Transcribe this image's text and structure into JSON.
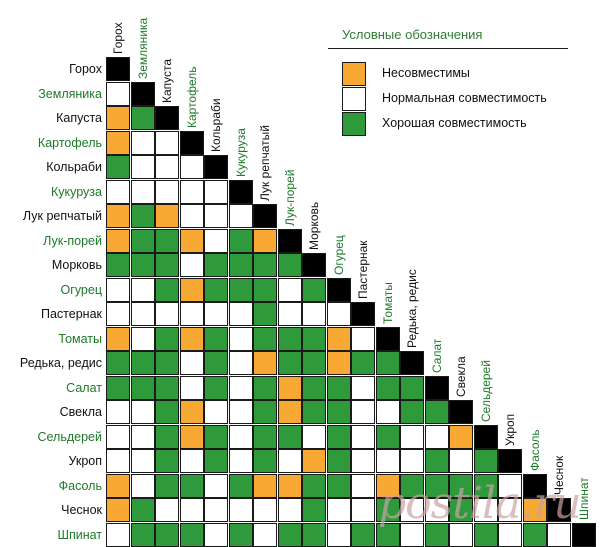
{
  "legend": {
    "title": "Условные обозначения",
    "items": [
      {
        "key": "bad",
        "label": "Несовместимы"
      },
      {
        "key": "neutral",
        "label": "Нормальная совместимость"
      },
      {
        "key": "good",
        "label": "Хорошая совместимость"
      }
    ]
  },
  "colors": {
    "bad": "#f7a933",
    "neutral": "#ffffff",
    "good": "#2e9a3c",
    "self": "#000000",
    "label_black": "#111111",
    "label_green": "#1f7a2a"
  },
  "vegetables": [
    {
      "name": "Горох",
      "label_color": "black"
    },
    {
      "name": "Земляника",
      "label_color": "green"
    },
    {
      "name": "Капуста",
      "label_color": "black"
    },
    {
      "name": "Картофель",
      "label_color": "green"
    },
    {
      "name": "Кольраби",
      "label_color": "black"
    },
    {
      "name": "Кукуруза",
      "label_color": "green"
    },
    {
      "name": "Лук репчатый",
      "label_color": "black"
    },
    {
      "name": "Лук-порей",
      "label_color": "green"
    },
    {
      "name": "Морковь",
      "label_color": "black"
    },
    {
      "name": "Огурец",
      "label_color": "green"
    },
    {
      "name": "Пастернак",
      "label_color": "black"
    },
    {
      "name": "Томаты",
      "label_color": "green"
    },
    {
      "name": "Редька, редис",
      "label_color": "black"
    },
    {
      "name": "Салат",
      "label_color": "green"
    },
    {
      "name": "Свекла",
      "label_color": "black"
    },
    {
      "name": "Сельдерей",
      "label_color": "green"
    },
    {
      "name": "Укроп",
      "label_color": "black"
    },
    {
      "name": "Фасоль",
      "label_color": "green"
    },
    {
      "name": "Чеснок",
      "label_color": "black"
    },
    {
      "name": "Шпинат",
      "label_color": "green"
    }
  ],
  "matrix_rows": [
    [
      "self"
    ],
    [
      "neutral",
      "self"
    ],
    [
      "bad",
      "good",
      "self"
    ],
    [
      "bad",
      "neutral",
      "neutral",
      "self"
    ],
    [
      "good",
      "neutral",
      "neutral",
      "neutral",
      "self"
    ],
    [
      "neutral",
      "neutral",
      "neutral",
      "neutral",
      "neutral",
      "self"
    ],
    [
      "bad",
      "good",
      "bad",
      "neutral",
      "neutral",
      "neutral",
      "self"
    ],
    [
      "bad",
      "good",
      "good",
      "bad",
      "neutral",
      "good",
      "bad",
      "self"
    ],
    [
      "good",
      "good",
      "good",
      "neutral",
      "good",
      "good",
      "good",
      "good",
      "self"
    ],
    [
      "neutral",
      "neutral",
      "good",
      "bad",
      "good",
      "good",
      "good",
      "neutral",
      "good",
      "self"
    ],
    [
      "neutral",
      "neutral",
      "neutral",
      "neutral",
      "neutral",
      "neutral",
      "good",
      "neutral",
      "neutral",
      "neutral",
      "self"
    ],
    [
      "bad",
      "neutral",
      "good",
      "bad",
      "good",
      "neutral",
      "good",
      "good",
      "good",
      "bad",
      "neutral",
      "self"
    ],
    [
      "good",
      "good",
      "good",
      "neutral",
      "good",
      "neutral",
      "bad",
      "good",
      "good",
      "bad",
      "good",
      "good",
      "self"
    ],
    [
      "good",
      "good",
      "good",
      "neutral",
      "good",
      "neutral",
      "good",
      "bad",
      "good",
      "good",
      "neutral",
      "good",
      "good",
      "self"
    ],
    [
      "neutral",
      "neutral",
      "good",
      "bad",
      "neutral",
      "neutral",
      "good",
      "bad",
      "good",
      "good",
      "neutral",
      "neutral",
      "good",
      "good",
      "self"
    ],
    [
      "neutral",
      "neutral",
      "good",
      "bad",
      "good",
      "neutral",
      "good",
      "good",
      "neutral",
      "good",
      "neutral",
      "good",
      "neutral",
      "neutral",
      "bad",
      "self"
    ],
    [
      "neutral",
      "neutral",
      "good",
      "neutral",
      "good",
      "neutral",
      "good",
      "neutral",
      "bad",
      "good",
      "neutral",
      "neutral",
      "neutral",
      "good",
      "neutral",
      "good",
      "self"
    ],
    [
      "bad",
      "neutral",
      "good",
      "good",
      "neutral",
      "good",
      "bad",
      "bad",
      "good",
      "good",
      "neutral",
      "bad",
      "good",
      "good",
      "good",
      "good",
      "neutral",
      "self"
    ],
    [
      "bad",
      "good",
      "neutral",
      "neutral",
      "neutral",
      "neutral",
      "neutral",
      "neutral",
      "good",
      "neutral",
      "neutral",
      "good",
      "neutral",
      "neutral",
      "good",
      "neutral",
      "neutral",
      "bad",
      "self"
    ],
    [
      "neutral",
      "good",
      "good",
      "good",
      "neutral",
      "good",
      "neutral",
      "good",
      "good",
      "neutral",
      "good",
      "good",
      "neutral",
      "good",
      "neutral",
      "good",
      "neutral",
      "good",
      "neutral",
      "self"
    ]
  ],
  "watermark": "postila.ru"
}
